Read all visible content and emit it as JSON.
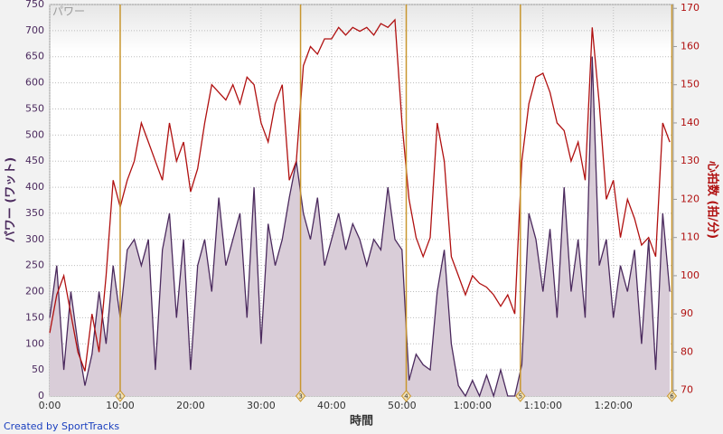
{
  "chart_data": {
    "type": "line",
    "title": "パワー",
    "x_label": "時間",
    "y_label": "パワー (ワット)",
    "y2_label": "心拍数 (拍/分)",
    "footer": "Created by SportTracks",
    "x": [
      0,
      1,
      2,
      3,
      4,
      5,
      6,
      7,
      8,
      9,
      10,
      11,
      12,
      13,
      14,
      15,
      16,
      17,
      18,
      19,
      20,
      21,
      22,
      23,
      24,
      25,
      26,
      27,
      28,
      29,
      30,
      31,
      32,
      33,
      34,
      35,
      36,
      37,
      38,
      39,
      40,
      41,
      42,
      43,
      44,
      45,
      46,
      47,
      48,
      49,
      50,
      51,
      52,
      53,
      54,
      55,
      56,
      57,
      58,
      59,
      60,
      61,
      62,
      63,
      64,
      65,
      66,
      67,
      68,
      69,
      70,
      71,
      72,
      73,
      74,
      75,
      76,
      77,
      78,
      79,
      80,
      81,
      82,
      83,
      84,
      85,
      86,
      87,
      88
    ],
    "series": [
      {
        "name": "パワー",
        "color": "#4b2a5e",
        "fill": "#d9cdd8",
        "values": [
          150,
          250,
          50,
          200,
          100,
          20,
          80,
          200,
          100,
          250,
          150,
          280,
          300,
          250,
          300,
          50,
          280,
          350,
          150,
          300,
          50,
          250,
          300,
          200,
          380,
          250,
          300,
          350,
          150,
          400,
          100,
          330,
          250,
          300,
          380,
          450,
          350,
          300,
          380,
          250,
          300,
          350,
          280,
          330,
          300,
          250,
          300,
          280,
          400,
          300,
          280,
          30,
          80,
          60,
          50,
          200,
          280,
          100,
          20,
          0,
          30,
          0,
          40,
          0,
          50,
          0,
          0,
          60,
          350,
          300,
          200,
          320,
          150,
          400,
          200,
          300,
          150,
          650,
          250,
          300,
          150,
          250,
          200,
          280,
          100,
          300,
          50,
          350,
          200
        ]
      },
      {
        "name": "心拍数",
        "color": "#b01010",
        "axis": "y2",
        "values": [
          85,
          95,
          100,
          90,
          80,
          75,
          90,
          80,
          100,
          125,
          118,
          125,
          130,
          140,
          135,
          130,
          125,
          140,
          130,
          135,
          122,
          128,
          140,
          150,
          148,
          146,
          150,
          145,
          152,
          150,
          140,
          135,
          145,
          150,
          125,
          130,
          155,
          160,
          158,
          162,
          162,
          165,
          163,
          165,
          164,
          165,
          163,
          166,
          165,
          167,
          140,
          120,
          110,
          105,
          110,
          140,
          130,
          105,
          100,
          95,
          100,
          98,
          97,
          95,
          92,
          95,
          90,
          130,
          145,
          152,
          153,
          148,
          140,
          138,
          130,
          135,
          125,
          165,
          145,
          120,
          125,
          110,
          120,
          115,
          108,
          110,
          105,
          140,
          135
        ]
      }
    ],
    "xlim": [
      0,
      88.5
    ],
    "xticks": [
      {
        "value": 0,
        "label": "0:00"
      },
      {
        "value": 10,
        "label": "10:00"
      },
      {
        "value": 20,
        "label": "20:00"
      },
      {
        "value": 30,
        "label": "30:00"
      },
      {
        "value": 40,
        "label": "40:00"
      },
      {
        "value": 50,
        "label": "50:00"
      },
      {
        "value": 60,
        "label": "1:00:00"
      },
      {
        "value": 70,
        "label": "1:10:00"
      },
      {
        "value": 80,
        "label": "1:20:00"
      }
    ],
    "ylim": [
      0,
      750
    ],
    "yticks": [
      0,
      50,
      100,
      150,
      200,
      250,
      300,
      350,
      400,
      450,
      500,
      550,
      600,
      650,
      700,
      750
    ],
    "y2lim": [
      68.5,
      171
    ],
    "y2ticks": [
      70,
      80,
      90,
      100,
      110,
      120,
      130,
      140,
      150,
      160,
      170
    ],
    "grid": true,
    "marker_color": "#c8962e",
    "markers": [
      {
        "x": 10,
        "label": "1"
      },
      {
        "x": 35.6,
        "label": "3"
      },
      {
        "x": 50.6,
        "label": "4"
      },
      {
        "x": 66.8,
        "label": "5"
      },
      {
        "x": 88.3,
        "label": "6"
      }
    ]
  }
}
